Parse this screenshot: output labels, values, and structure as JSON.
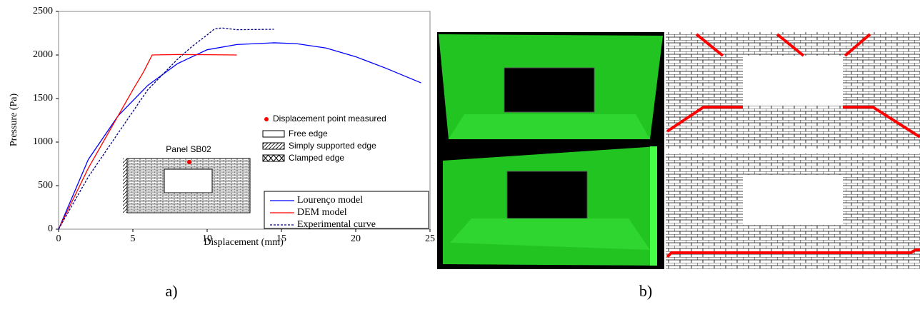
{
  "chart_data": {
    "type": "line",
    "x_label": "Displacement (mm)",
    "y_label": "Pressure (Pa)",
    "xlim": [
      0,
      25
    ],
    "ylim": [
      0,
      2500
    ],
    "xticks": [
      0,
      5,
      10,
      15,
      20,
      25
    ],
    "yticks": [
      0,
      500,
      1000,
      1500,
      2000,
      2500
    ],
    "series": [
      {
        "name": "Lourenço model",
        "color": "#0000ff",
        "style": "solid",
        "x": [
          0,
          2,
          4,
          6,
          8,
          10,
          12,
          14.5,
          16,
          18,
          20,
          22,
          24.4
        ],
        "values": [
          0,
          800,
          1300,
          1650,
          1900,
          2060,
          2120,
          2140,
          2130,
          2080,
          1980,
          1850,
          1680
        ]
      },
      {
        "name": "DEM model",
        "color": "#ff0000",
        "style": "solid",
        "x": [
          0,
          2,
          3,
          4,
          5,
          5.7,
          6,
          6.3,
          8,
          10,
          12
        ],
        "values": [
          0,
          700,
          1000,
          1300,
          1600,
          1800,
          1900,
          2000,
          2005,
          2003,
          2000
        ]
      },
      {
        "name": "Experimental curve",
        "color": "#000080",
        "style": "dashed",
        "x": [
          0,
          2,
          4,
          6,
          8,
          9,
          10,
          10.5,
          11,
          12,
          14.5
        ],
        "values": [
          0,
          600,
          1100,
          1600,
          1950,
          2100,
          2230,
          2300,
          2310,
          2290,
          2295
        ]
      }
    ],
    "inset_title": "Panel SB02",
    "boundary_legend": [
      "Displacement point measured",
      "Free edge",
      "Simply supported edge",
      "Clamped edge"
    ]
  },
  "panel_labels": [
    "a)",
    "b)"
  ]
}
